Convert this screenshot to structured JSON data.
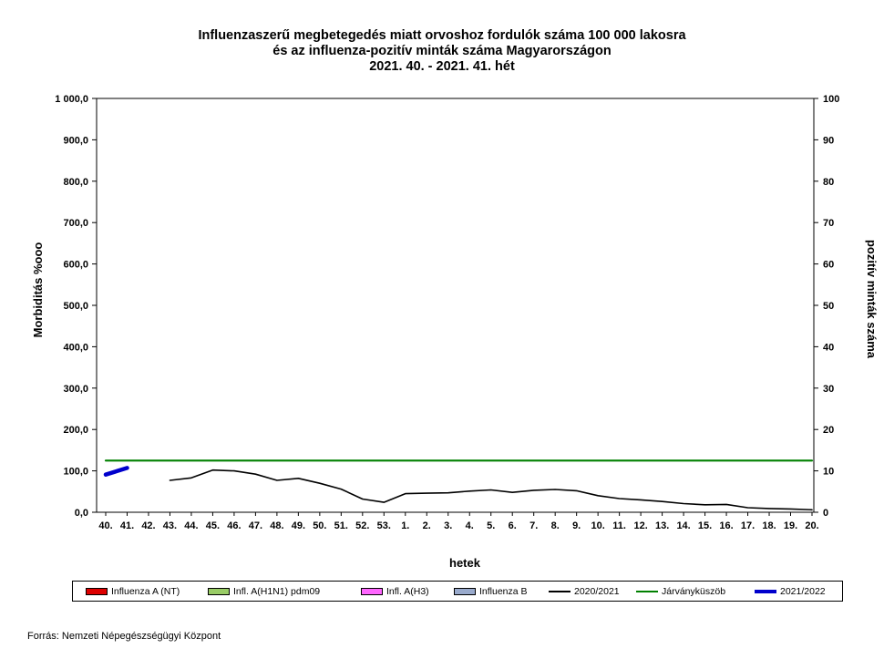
{
  "title_lines": [
    "Influenzaszerű megbetegedés miatt orvoshoz fordulók száma 100 000 lakosra",
    "és az influenza-pozitív minták száma Magyarországon",
    "2021. 40. - 2021. 41. hét"
  ],
  "source": "Forrás: Nemzeti Népegészségügyi Központ",
  "colors": {
    "season_2020": "#000000",
    "threshold": "#008000",
    "season_2021": "#0000cc",
    "infl_a_nt": "#ff0000",
    "infl_h1n1": "#99cc66",
    "infl_h3": "#ff66ff",
    "infl_b": "#99aacc"
  },
  "legend": [
    {
      "label": "Influenza A (NT)",
      "kind": "swatch",
      "color": "#dd0000"
    },
    {
      "label": "Infl. A(H1N1) pdm09",
      "kind": "swatch",
      "color": "#99cc66"
    },
    {
      "label": "Infl. A(H3)",
      "kind": "swatch",
      "color": "#ff66ff"
    },
    {
      "label": "Influenza B",
      "kind": "swatch",
      "color": "#99aacc"
    },
    {
      "label": "2020/2021",
      "kind": "line",
      "color": "#000000"
    },
    {
      "label": "Járványküszöb",
      "kind": "line",
      "color": "#008000"
    },
    {
      "label": "2021/2022",
      "kind": "line",
      "color": "#0000cc"
    }
  ],
  "chart_data": {
    "type": "line",
    "xlabel": "hetek",
    "ylabel": "Morbiditás %ooo",
    "y2label": "pozitív minták száma",
    "ylim": [
      0,
      1000
    ],
    "y2lim": [
      0,
      100
    ],
    "yticks": [
      "0,0",
      "100,0",
      "200,0",
      "300,0",
      "400,0",
      "500,0",
      "600,0",
      "700,0",
      "800,0",
      "900,0",
      "1 000,0"
    ],
    "y2ticks": [
      "0",
      "10",
      "20",
      "30",
      "40",
      "50",
      "60",
      "70",
      "80",
      "90",
      "100"
    ],
    "categories": [
      "40.",
      "41.",
      "42.",
      "43.",
      "44.",
      "45.",
      "46.",
      "47.",
      "48.",
      "49.",
      "50.",
      "51.",
      "52.",
      "53.",
      "1.",
      "2.",
      "3.",
      "4.",
      "5.",
      "6.",
      "7.",
      "8.",
      "9.",
      "10.",
      "11.",
      "12.",
      "13.",
      "14.",
      "15.",
      "16.",
      "17.",
      "18.",
      "19.",
      "20."
    ],
    "series": [
      {
        "name": "2020/2021",
        "values": [
          null,
          null,
          null,
          77,
          83,
          102,
          100,
          92,
          77,
          82,
          70,
          56,
          32,
          24,
          45,
          46,
          47,
          51,
          54,
          48,
          53,
          55,
          52,
          40,
          33,
          30,
          26,
          21,
          18,
          19,
          11,
          9,
          8,
          6
        ]
      },
      {
        "name": "Járványküszöb",
        "values": [
          125,
          125,
          125,
          125,
          125,
          125,
          125,
          125,
          125,
          125,
          125,
          125,
          125,
          125,
          125,
          125,
          125,
          125,
          125,
          125,
          125,
          125,
          125,
          125,
          125,
          125,
          125,
          125,
          125,
          125,
          125,
          125,
          125,
          125
        ]
      },
      {
        "name": "2021/2022",
        "values": [
          91,
          107,
          null,
          null,
          null,
          null,
          null,
          null,
          null,
          null,
          null,
          null,
          null,
          null,
          null,
          null,
          null,
          null,
          null,
          null,
          null,
          null,
          null,
          null,
          null,
          null,
          null,
          null,
          null,
          null,
          null,
          null,
          null,
          null
        ]
      }
    ],
    "grid": false,
    "legend_position": "bottom"
  }
}
